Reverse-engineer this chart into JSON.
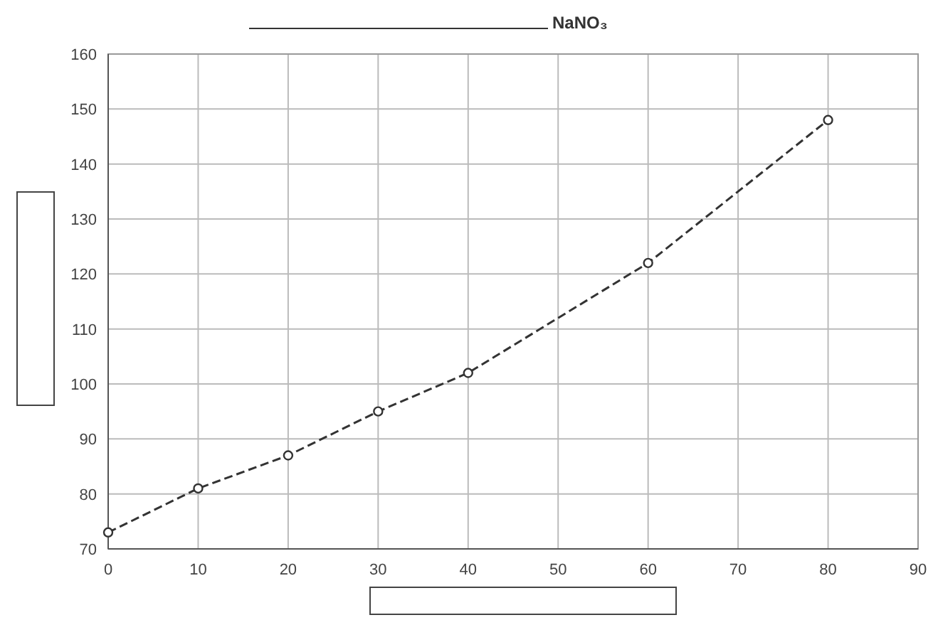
{
  "chart_data": {
    "type": "line",
    "title": "NaNO₃",
    "x": [
      0,
      10,
      20,
      30,
      40,
      60,
      80
    ],
    "series": [
      {
        "color": "#333333",
        "values": [
          73,
          81,
          87,
          95,
          102,
          122,
          148
        ]
      }
    ],
    "xlim": [
      0,
      90
    ],
    "xticks": [
      0,
      10,
      20,
      30,
      40,
      50,
      60,
      70,
      80,
      90
    ],
    "ylim": [
      70,
      160
    ],
    "yticks": [
      70,
      80,
      90,
      100,
      110,
      120,
      130,
      140,
      150,
      160
    ],
    "grid": true,
    "marker": "circle",
    "line_style": "dashed"
  }
}
